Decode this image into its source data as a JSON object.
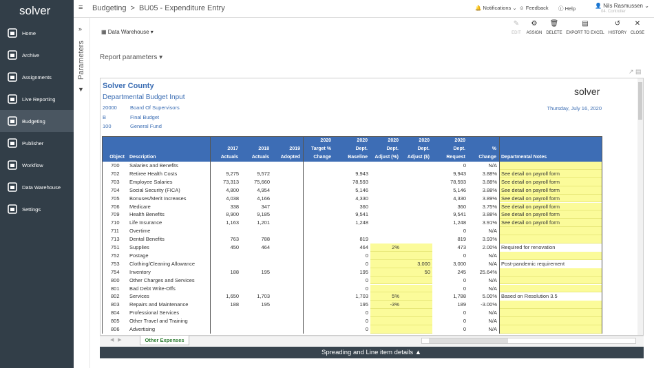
{
  "app": {
    "logo": "solver",
    "breadcrumb": [
      "Budgeting",
      ">",
      "BU05 - Expenditure Entry"
    ],
    "menu": [
      "Home",
      "Archive",
      "Assignments",
      "Live Reporting",
      "Budgeting",
      "Publisher",
      "Workflow",
      "Data Warehouse",
      "Settings"
    ],
    "top_right": {
      "notifications": "Notifications",
      "feedback": "Feedback",
      "help": "Help",
      "user": "Nils Rasmussen",
      "role": "04. Controller"
    }
  },
  "parameters_panel": "Parameters",
  "toolbar": {
    "source": "Data Warehouse",
    "actions": [
      "EDIT",
      "ASSIGN",
      "DELETE",
      "EXPORT TO EXCEL",
      "HISTORY",
      "CLOSE"
    ]
  },
  "report_parameters": "Report parameters",
  "report": {
    "org": "Solver County",
    "title": "Departmental Budget Input",
    "logo": "solver",
    "date": "Thursday, July 16, 2020",
    "info": [
      [
        "20000",
        "Board Of Supervisors"
      ],
      [
        "B",
        "Final Budget"
      ],
      [
        "100",
        "General Fund"
      ]
    ],
    "columns": [
      [
        "Object"
      ],
      [
        "Description"
      ],
      [
        "2017",
        "Actuals"
      ],
      [
        "2018",
        "Actuals"
      ],
      [
        "2019",
        "Adopted"
      ],
      [
        "2020",
        "Target %",
        "Change"
      ],
      [
        "2020",
        "Dept.",
        "Baseline"
      ],
      [
        "2020",
        "Dept.",
        "Adjust (%)"
      ],
      [
        "2020",
        "Dept.",
        "Adjust ($)"
      ],
      [
        "2020",
        "Dept.",
        "Request"
      ],
      [
        "%",
        "Change"
      ],
      [
        "Departmental Notes"
      ]
    ],
    "rows": [
      [
        "700",
        "Salaries and Benefits",
        null,
        null,
        null,
        null,
        null,
        null,
        null,
        "0",
        "N/A",
        null
      ],
      [
        "702",
        "Retiree Health Costs",
        "9,275",
        "9,572",
        null,
        null,
        "9,943",
        null,
        null,
        "9,943",
        "3.88%",
        "See detail on payroll form"
      ],
      [
        "703",
        "Employee Salaries",
        "73,313",
        "75,660",
        null,
        null,
        "78,593",
        null,
        null,
        "78,593",
        "3.88%",
        "See detail on payroll form"
      ],
      [
        "704",
        "Social Security (FICA)",
        "4,800",
        "4,954",
        null,
        null,
        "5,146",
        null,
        null,
        "5,146",
        "3.88%",
        "See detail on payroll form"
      ],
      [
        "705",
        "Bonuses/Merit Increases",
        "4,038",
        "4,166",
        null,
        null,
        "4,330",
        null,
        null,
        "4,330",
        "3.89%",
        "See detail on payroll form"
      ],
      [
        "706",
        "Medicare",
        "338",
        "347",
        null,
        null,
        "360",
        null,
        null,
        "360",
        "3.75%",
        "See detail on payroll form"
      ],
      [
        "709",
        "Health Benefits",
        "8,900",
        "9,185",
        null,
        null,
        "9,541",
        null,
        null,
        "9,541",
        "3.88%",
        "See detail on payroll form"
      ],
      [
        "710",
        "Life Insurance",
        "1,163",
        "1,201",
        null,
        null,
        "1,248",
        null,
        null,
        "1,248",
        "3.91%",
        "See detail on payroll form"
      ],
      [
        "711",
        "Overtime",
        null,
        null,
        null,
        null,
        null,
        null,
        null,
        "0",
        "N/A",
        null
      ],
      [
        "713",
        "Dental Benefits",
        "763",
        "788",
        null,
        null,
        "819",
        null,
        null,
        "819",
        "3.93%",
        null
      ],
      [
        "751",
        "Supplies",
        "450",
        "464",
        null,
        null,
        "464",
        "2%",
        null,
        "473",
        "2.00%",
        "Required for renovation"
      ],
      [
        "752",
        "Postage",
        null,
        null,
        null,
        null,
        "0",
        null,
        null,
        "0",
        "N/A",
        null
      ],
      [
        "753",
        "Clothing/Cleaning Allowance",
        null,
        null,
        null,
        null,
        "0",
        null,
        "3,000",
        "3,000",
        "N/A",
        "Post-pandemic requirement"
      ],
      [
        "754",
        "Inventory",
        "188",
        "195",
        null,
        null,
        "195",
        null,
        "50",
        "245",
        "25.64%",
        null
      ],
      [
        "800",
        "Other Charges and Services",
        null,
        null,
        null,
        null,
        "0",
        null,
        null,
        "0",
        "N/A",
        null
      ],
      [
        "801",
        "Bad Debt Write-Offs",
        null,
        null,
        null,
        null,
        "0",
        null,
        null,
        "0",
        "N/A",
        null
      ],
      [
        "802",
        "Services",
        "1,650",
        "1,703",
        null,
        null,
        "1,703",
        "5%",
        null,
        "1,788",
        "5.00%",
        "Based on Resolution 3.5"
      ],
      [
        "803",
        "Repairs and Maintenance",
        "188",
        "195",
        null,
        null,
        "195",
        "-3%",
        null,
        "189",
        "-3.00%",
        null
      ],
      [
        "804",
        "Professional Services",
        null,
        null,
        null,
        null,
        "0",
        null,
        null,
        "0",
        "N/A",
        null
      ],
      [
        "805",
        "Other Travel and Training",
        null,
        null,
        null,
        null,
        "0",
        null,
        null,
        "0",
        "N/A",
        null
      ],
      [
        "806",
        "Advertising",
        null,
        null,
        null,
        null,
        "0",
        null,
        null,
        "0",
        "N/A",
        null
      ]
    ]
  },
  "sheet_tab": "Other Expenses",
  "footer": "Spreading and Line item details"
}
